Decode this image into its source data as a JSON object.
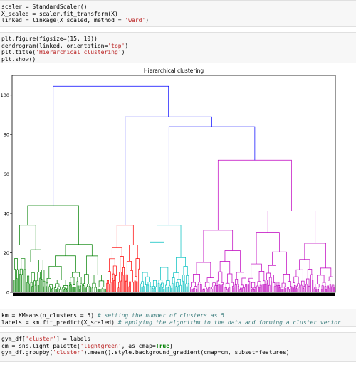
{
  "cells": [
    {
      "name": "code-cell-scaler",
      "lines": [
        [
          {
            "t": "scaler = StandardScaler()"
          }
        ],
        [
          {
            "t": "X_scaled = scaler.fit_transform(X)"
          }
        ],
        [
          {
            "t": "linked = linkage(X_scaled, method = "
          },
          {
            "t": "'ward'",
            "c": "str"
          },
          {
            "t": ")"
          }
        ]
      ]
    },
    {
      "name": "code-cell-dendrogram",
      "lines": [
        [
          {
            "t": "plt.figure(figsize=(15, 10))"
          }
        ],
        [
          {
            "t": "dendrogram(linked, orientation="
          },
          {
            "t": "'top'",
            "c": "str"
          },
          {
            "t": ")"
          }
        ],
        [
          {
            "t": "plt.title("
          },
          {
            "t": "'Hierarchical clustering'",
            "c": "str"
          },
          {
            "t": ")"
          }
        ],
        [
          {
            "t": "plt.show()"
          }
        ]
      ]
    },
    {
      "name": "code-cell-kmeans",
      "lines": [
        [
          {
            "t": "km = KMeans(n_clusters = 5) "
          },
          {
            "t": "# setting the number of clusters as 5",
            "c": "cm"
          }
        ],
        [
          {
            "t": "labels = km.fit_predict(X_scaled) "
          },
          {
            "t": "# applying the algorithm to the data and forming a cluster vector",
            "c": "cm"
          }
        ]
      ]
    },
    {
      "name": "code-cell-groupby",
      "lines": [
        [
          {
            "t": "gym_df["
          },
          {
            "t": "'cluster'",
            "c": "str"
          },
          {
            "t": "] = labels"
          }
        ],
        [
          {
            "t": "cm = sns.light_palette("
          },
          {
            "t": "'lightgreen'",
            "c": "str"
          },
          {
            "t": ", as_cmap="
          },
          {
            "t": "True",
            "c": "kw"
          },
          {
            "t": ")"
          }
        ],
        [
          {
            "t": "gym_df.groupby("
          },
          {
            "t": "'cluster'",
            "c": "str"
          },
          {
            "t": ").mean().style.background_gradient(cmap=cm, subset=features)"
          }
        ]
      ]
    }
  ],
  "chart_data": {
    "type": "dendrogram",
    "title": "Hierarchical clustering",
    "ylim": [
      0,
      110
    ],
    "yticks": [
      0,
      20,
      40,
      60,
      80,
      100
    ],
    "xtick_labels": "dense leaf labels (unreadable)",
    "grid": false,
    "clusters": [
      {
        "color": "#008000",
        "merge_height": 44,
        "leaf_span": [
          0.0,
          0.29
        ]
      },
      {
        "color": "#ff0000",
        "merge_height": 34,
        "leaf_span": [
          0.29,
          0.396
        ]
      },
      {
        "color": "#00bfbf",
        "merge_height": 34,
        "leaf_span": [
          0.396,
          0.55
        ]
      },
      {
        "color": "#bf00bf",
        "merge_height": 67,
        "leaf_span": [
          0.55,
          1.0
        ]
      }
    ],
    "top_links": [
      {
        "color": "#0000ff",
        "height": 104.5,
        "left": "green",
        "right": "rest"
      },
      {
        "color": "#0000ff",
        "height": 89,
        "left": "red",
        "right": "cyan+magenta"
      },
      {
        "color": "#0000ff",
        "height": 84,
        "left": "cyan",
        "right": "magenta"
      }
    ],
    "colors": {
      "link_above_threshold": "#0000ff"
    }
  }
}
